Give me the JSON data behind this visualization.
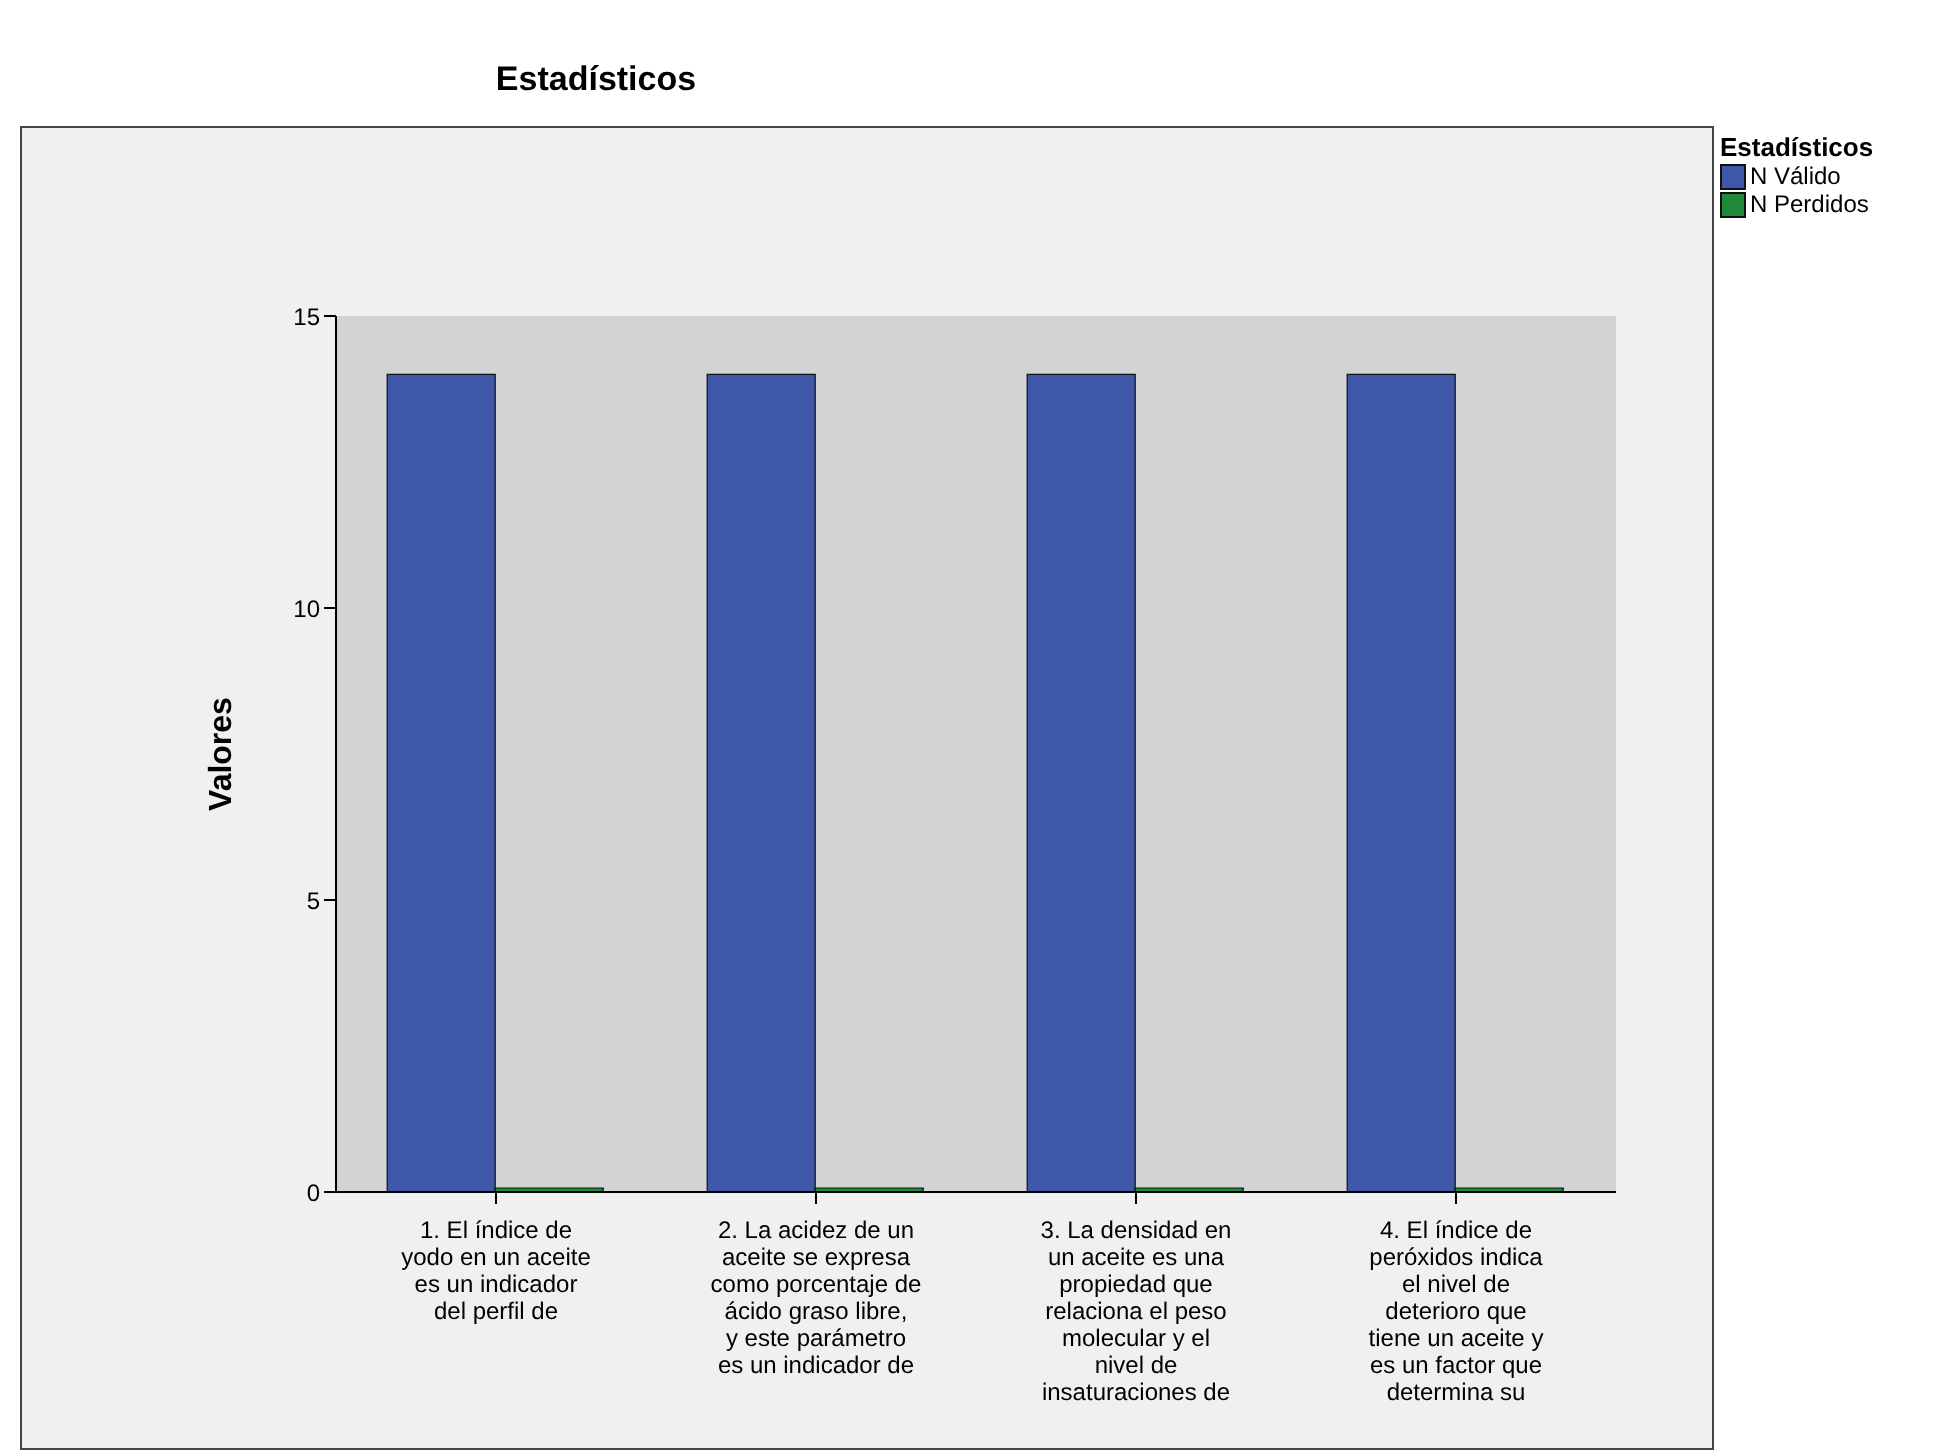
{
  "chart_data": {
    "type": "bar",
    "title": "Estadísticos",
    "ylabel": "Valores",
    "legend_title": "Estadísticos",
    "legend": "top right",
    "categories": [
      "1. El índice de yodo en un aceite es un indicador del perfil de",
      "2. La acidez de un aceite se expresa como porcentaje de ácido graso libre, y este parámetro es un indicador de",
      "3. La densidad en un aceite es una propiedad que relaciona el peso molecular y el nivel de insaturaciones de",
      "4. El índice de peróxidos indica el nivel de deterioro que tiene un aceite y es un factor que determina su"
    ],
    "series": [
      {
        "name": "N Válido",
        "color": "#3f57a8",
        "values": [
          14,
          14,
          14,
          14
        ]
      },
      {
        "name": "N Perdidos",
        "color": "#1f8a3a",
        "values": [
          0,
          0,
          0,
          0
        ]
      }
    ],
    "ylim": [
      0,
      15
    ],
    "yticks": [
      0,
      5,
      10,
      15
    ],
    "grid": false
  }
}
